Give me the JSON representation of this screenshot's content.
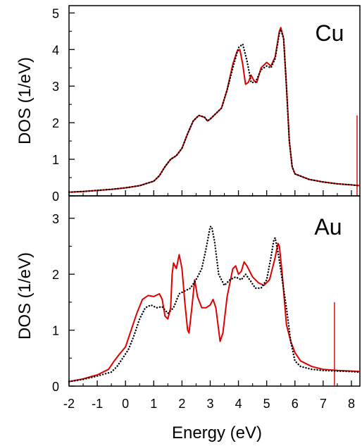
{
  "chart_data": {
    "type": "line",
    "xlabel": "Energy  (eV)",
    "xlim": [
      -2,
      8.3
    ],
    "xticks": [
      "-2",
      "-1",
      "0",
      "1",
      "2",
      "3",
      "4",
      "5",
      "6",
      "7",
      "8"
    ],
    "xtick_values": [
      -2,
      -1,
      0,
      1,
      2,
      3,
      4,
      5,
      6,
      7,
      8
    ],
    "colors": {
      "red": "#e00000",
      "black": "#000000"
    },
    "panels": [
      {
        "label": "Cu",
        "ylabel": "DOS  (1/eV)",
        "ylim": [
          0,
          5.2
        ],
        "yticks": [
          "0",
          "1",
          "2",
          "3",
          "4",
          "5"
        ],
        "ytick_values": [
          0,
          1,
          2,
          3,
          4,
          5
        ],
        "marker": {
          "x": 8.2,
          "y_top": 2.2
        },
        "series": [
          {
            "style": "solid-red",
            "points": [
              [
                -2,
                0.1
              ],
              [
                -1.5,
                0.12
              ],
              [
                -1,
                0.15
              ],
              [
                -0.5,
                0.18
              ],
              [
                0,
                0.22
              ],
              [
                0.5,
                0.28
              ],
              [
                1,
                0.4
              ],
              [
                1.2,
                0.55
              ],
              [
                1.4,
                0.8
              ],
              [
                1.6,
                1.0
              ],
              [
                1.8,
                1.1
              ],
              [
                2.0,
                1.3
              ],
              [
                2.2,
                1.7
              ],
              [
                2.4,
                2.05
              ],
              [
                2.6,
                2.2
              ],
              [
                2.8,
                2.15
              ],
              [
                2.9,
                2.05
              ],
              [
                3.0,
                2.1
              ],
              [
                3.2,
                2.25
              ],
              [
                3.4,
                2.4
              ],
              [
                3.6,
                2.9
              ],
              [
                3.8,
                3.6
              ],
              [
                3.95,
                3.95
              ],
              [
                4.05,
                4.0
              ],
              [
                4.15,
                3.6
              ],
              [
                4.25,
                3.05
              ],
              [
                4.35,
                3.1
              ],
              [
                4.45,
                3.3
              ],
              [
                4.55,
                3.15
              ],
              [
                4.65,
                3.1
              ],
              [
                4.8,
                3.5
              ],
              [
                5.0,
                3.65
              ],
              [
                5.15,
                3.55
              ],
              [
                5.3,
                3.8
              ],
              [
                5.45,
                4.5
              ],
              [
                5.5,
                4.6
              ],
              [
                5.6,
                4.3
              ],
              [
                5.7,
                3.0
              ],
              [
                5.8,
                1.5
              ],
              [
                5.9,
                0.8
              ],
              [
                6.0,
                0.6
              ],
              [
                6.5,
                0.45
              ],
              [
                7.0,
                0.38
              ],
              [
                7.5,
                0.33
              ],
              [
                8.0,
                0.3
              ],
              [
                8.3,
                0.28
              ]
            ]
          },
          {
            "style": "dotted-black",
            "points": [
              [
                -2,
                0.1
              ],
              [
                -1.5,
                0.12
              ],
              [
                -1,
                0.15
              ],
              [
                -0.5,
                0.18
              ],
              [
                0,
                0.22
              ],
              [
                0.5,
                0.28
              ],
              [
                1,
                0.4
              ],
              [
                1.2,
                0.55
              ],
              [
                1.4,
                0.8
              ],
              [
                1.6,
                1.0
              ],
              [
                1.8,
                1.1
              ],
              [
                2.0,
                1.3
              ],
              [
                2.2,
                1.7
              ],
              [
                2.4,
                2.05
              ],
              [
                2.6,
                2.2
              ],
              [
                2.8,
                2.15
              ],
              [
                2.9,
                2.05
              ],
              [
                3.0,
                2.1
              ],
              [
                3.2,
                2.25
              ],
              [
                3.4,
                2.4
              ],
              [
                3.6,
                2.9
              ],
              [
                3.8,
                3.5
              ],
              [
                4.0,
                4.05
              ],
              [
                4.15,
                4.15
              ],
              [
                4.3,
                3.7
              ],
              [
                4.45,
                3.1
              ],
              [
                4.6,
                3.1
              ],
              [
                4.8,
                3.45
              ],
              [
                5.0,
                3.55
              ],
              [
                5.15,
                3.5
              ],
              [
                5.3,
                3.75
              ],
              [
                5.45,
                4.45
              ],
              [
                5.5,
                4.55
              ],
              [
                5.6,
                4.3
              ],
              [
                5.7,
                3.0
              ],
              [
                5.8,
                1.5
              ],
              [
                5.9,
                0.8
              ],
              [
                6.0,
                0.6
              ],
              [
                6.5,
                0.45
              ],
              [
                7.0,
                0.38
              ],
              [
                7.5,
                0.33
              ],
              [
                8.0,
                0.3
              ],
              [
                8.3,
                0.28
              ]
            ]
          }
        ]
      },
      {
        "label": "Au",
        "ylabel": "DOS  (1/eV)",
        "ylim": [
          0,
          3.4
        ],
        "yticks": [
          "0",
          "1",
          "2",
          "3"
        ],
        "ytick_values": [
          0,
          1,
          2,
          3
        ],
        "marker": {
          "x": 7.4,
          "y_top": 1.5
        },
        "series": [
          {
            "style": "solid-red",
            "points": [
              [
                -2,
                0.08
              ],
              [
                -1.5,
                0.13
              ],
              [
                -1,
                0.2
              ],
              [
                -0.6,
                0.3
              ],
              [
                -0.4,
                0.45
              ],
              [
                -0.2,
                0.58
              ],
              [
                0,
                0.7
              ],
              [
                0.2,
                1.0
              ],
              [
                0.4,
                1.3
              ],
              [
                0.6,
                1.55
              ],
              [
                0.8,
                1.62
              ],
              [
                1.0,
                1.6
              ],
              [
                1.2,
                1.65
              ],
              [
                1.3,
                1.55
              ],
              [
                1.4,
                1.25
              ],
              [
                1.5,
                1.2
              ],
              [
                1.6,
                1.4
              ],
              [
                1.65,
                2.0
              ],
              [
                1.7,
                2.2
              ],
              [
                1.8,
                2.1
              ],
              [
                1.9,
                2.35
              ],
              [
                2.0,
                2.1
              ],
              [
                2.1,
                1.5
              ],
              [
                2.2,
                1.0
              ],
              [
                2.25,
                0.95
              ],
              [
                2.35,
                1.4
              ],
              [
                2.45,
                1.9
              ],
              [
                2.55,
                1.6
              ],
              [
                2.7,
                1.4
              ],
              [
                2.85,
                1.4
              ],
              [
                3.0,
                1.45
              ],
              [
                3.1,
                1.55
              ],
              [
                3.2,
                1.4
              ],
              [
                3.3,
                1.0
              ],
              [
                3.35,
                0.8
              ],
              [
                3.45,
                0.95
              ],
              [
                3.6,
                1.6
              ],
              [
                3.8,
                2.1
              ],
              [
                3.9,
                2.15
              ],
              [
                4.0,
                2.0
              ],
              [
                4.1,
                2.05
              ],
              [
                4.2,
                2.22
              ],
              [
                4.3,
                2.15
              ],
              [
                4.5,
                1.95
              ],
              [
                4.7,
                1.85
              ],
              [
                4.9,
                1.8
              ],
              [
                5.1,
                1.9
              ],
              [
                5.3,
                2.3
              ],
              [
                5.4,
                2.55
              ],
              [
                5.45,
                2.5
              ],
              [
                5.55,
                2.0
              ],
              [
                5.7,
                1.1
              ],
              [
                5.85,
                0.8
              ],
              [
                6.0,
                0.6
              ],
              [
                6.2,
                0.45
              ],
              [
                6.6,
                0.35
              ],
              [
                7.0,
                0.3
              ],
              [
                7.5,
                0.28
              ],
              [
                8.0,
                0.27
              ],
              [
                8.3,
                0.26
              ]
            ]
          },
          {
            "style": "dotted-black",
            "points": [
              [
                -2,
                0.08
              ],
              [
                -1.5,
                0.12
              ],
              [
                -1,
                0.18
              ],
              [
                -0.5,
                0.25
              ],
              [
                -0.3,
                0.35
              ],
              [
                -0.1,
                0.5
              ],
              [
                0.1,
                0.65
              ],
              [
                0.3,
                0.9
              ],
              [
                0.5,
                1.2
              ],
              [
                0.7,
                1.4
              ],
              [
                0.9,
                1.45
              ],
              [
                1.1,
                1.4
              ],
              [
                1.3,
                1.42
              ],
              [
                1.5,
                1.3
              ],
              [
                1.7,
                1.4
              ],
              [
                1.9,
                1.65
              ],
              [
                2.1,
                1.7
              ],
              [
                2.3,
                1.75
              ],
              [
                2.5,
                1.9
              ],
              [
                2.7,
                2.1
              ],
              [
                2.85,
                2.45
              ],
              [
                3.0,
                2.85
              ],
              [
                3.05,
                2.85
              ],
              [
                3.15,
                2.6
              ],
              [
                3.3,
                2.0
              ],
              [
                3.5,
                1.8
              ],
              [
                3.7,
                1.9
              ],
              [
                3.9,
                1.95
              ],
              [
                4.1,
                1.9
              ],
              [
                4.25,
                2.0
              ],
              [
                4.4,
                1.9
              ],
              [
                4.6,
                1.75
              ],
              [
                4.8,
                1.75
              ],
              [
                5.0,
                1.9
              ],
              [
                5.15,
                2.3
              ],
              [
                5.25,
                2.6
              ],
              [
                5.3,
                2.65
              ],
              [
                5.4,
                2.4
              ],
              [
                5.55,
                1.9
              ],
              [
                5.7,
                1.4
              ],
              [
                5.85,
                0.8
              ],
              [
                6.0,
                0.45
              ],
              [
                6.2,
                0.35
              ],
              [
                6.6,
                0.3
              ],
              [
                7.0,
                0.28
              ],
              [
                7.5,
                0.27
              ],
              [
                8.0,
                0.26
              ],
              [
                8.3,
                0.25
              ]
            ]
          }
        ]
      }
    ]
  }
}
